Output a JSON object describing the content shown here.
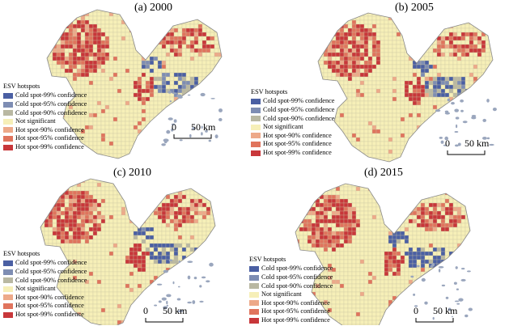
{
  "legend": {
    "title": "ESV hotspots",
    "classes": [
      {
        "label": "Cold spot-99% confidence",
        "color": "#4a5fa3"
      },
      {
        "label": "Cold spot-95% confidence",
        "color": "#7e8db3"
      },
      {
        "label": "Cold spot-90% confidence",
        "color": "#b9b8a2"
      },
      {
        "label": "Not significant",
        "color": "#f6efb8"
      },
      {
        "label": "Hot spot-90% confidence",
        "color": "#eda989"
      },
      {
        "label": "Hot spot-95% confidence",
        "color": "#e0745d"
      },
      {
        "label": "Hot spot-99% confidence",
        "color": "#c8373a"
      }
    ]
  },
  "scale_bar": {
    "start": "0",
    "end": "50 km"
  },
  "maps": [
    {
      "title": "(a) 2000"
    },
    {
      "title": "(b) 2005"
    },
    {
      "title": "(c) 2010"
    },
    {
      "title": "(d) 2015"
    }
  ],
  "colors": {
    "outline": "#8a8a8a",
    "grid": "#c9c3a0",
    "islands": "#9aa6bd"
  }
}
